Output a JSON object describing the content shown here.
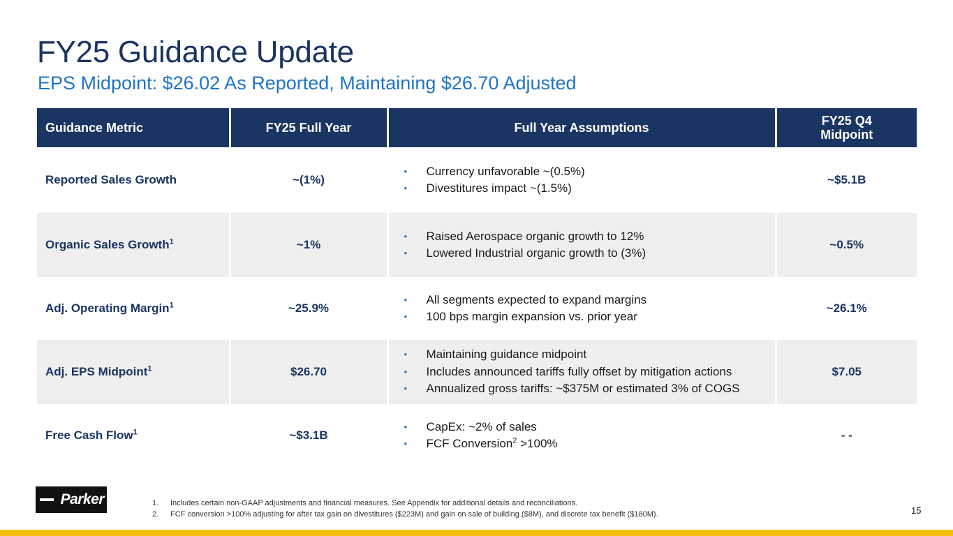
{
  "title": "FY25 Guidance Update",
  "subtitle": "EPS Midpoint: $26.02 As Reported, Maintaining $26.70 Adjusted",
  "table": {
    "headers": [
      "Guidance Metric",
      "FY25 Full Year",
      "Full Year Assumptions",
      "FY25 Q4 Midpoint"
    ],
    "rows": [
      {
        "metric": "Reported Sales Growth",
        "metric_sup": "",
        "full_year": "~(1%)",
        "assumptions": [
          {
            "text": "Currency unfavorable ~(0.5%)",
            "sup": "",
            "after": ""
          },
          {
            "text": "Divestitures impact ~(1.5%)",
            "sup": "",
            "after": ""
          }
        ],
        "q4": "~$5.1B"
      },
      {
        "metric": "Organic Sales Growth",
        "metric_sup": "1",
        "full_year": "~1%",
        "assumptions": [
          {
            "text": "Raised Aerospace organic growth to 12%",
            "sup": "",
            "after": ""
          },
          {
            "text": "Lowered Industrial organic growth to (3%)",
            "sup": "",
            "after": ""
          }
        ],
        "q4": "~0.5%"
      },
      {
        "metric": "Adj. Operating Margin",
        "metric_sup": "1",
        "full_year": "~25.9%",
        "assumptions": [
          {
            "text": "All segments expected to expand margins",
            "sup": "",
            "after": ""
          },
          {
            "text": "100 bps margin expansion vs. prior year",
            "sup": "",
            "after": ""
          }
        ],
        "q4": "~26.1%"
      },
      {
        "metric": "Adj. EPS Midpoint",
        "metric_sup": "1",
        "full_year": "$26.70",
        "assumptions": [
          {
            "text": "Maintaining guidance midpoint",
            "sup": "",
            "after": ""
          },
          {
            "text": "Includes announced tariffs fully offset by mitigation actions",
            "sup": "",
            "after": ""
          },
          {
            "text": "Annualized gross tariffs: ~$375M or estimated 3% of COGS",
            "sup": "",
            "after": ""
          }
        ],
        "q4": "$7.05"
      },
      {
        "metric": "Free Cash Flow",
        "metric_sup": "1",
        "full_year": "~$3.1B",
        "assumptions": [
          {
            "text": "CapEx: ~2% of sales",
            "sup": "",
            "after": ""
          },
          {
            "text": "FCF Conversion",
            "sup": "2",
            "after": " >100%"
          }
        ],
        "q4": "- -"
      }
    ]
  },
  "bullet_glyph": "•",
  "logo_text": "Parker",
  "footnotes": [
    {
      "num": "1.",
      "text": "Includes certain non-GAAP adjustments and financial measures. See Appendix for additional details and reconciliations."
    },
    {
      "num": "2.",
      "text": "FCF conversion >100% adjusting for after tax gain on divestitures ($223M) and gain on sale of building ($8M), and discrete tax benefit ($180M)."
    }
  ],
  "page_number": "15",
  "colors": {
    "navy": "#1b3563",
    "blue": "#1f74c4",
    "shade": "#efefef",
    "gold": "#f5be0c"
  }
}
